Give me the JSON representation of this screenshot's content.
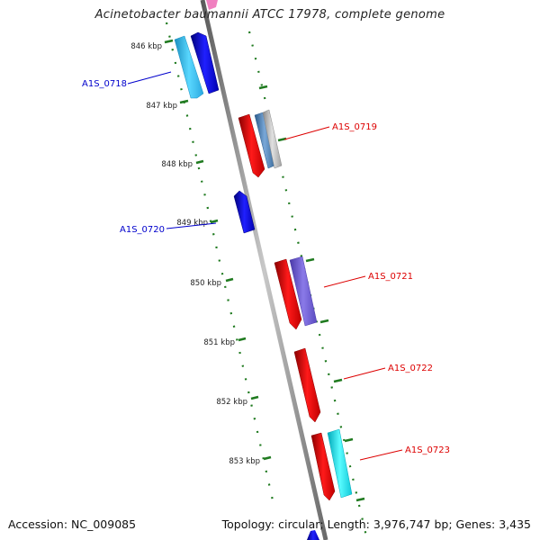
{
  "title": "Acinetobacter baumannii ATCC 17978, complete genome",
  "ticks": [
    "846 kbp",
    "847 kbp",
    "848 kbp",
    "849 kbp",
    "850 kbp",
    "851 kbp",
    "852 kbp",
    "853 kbp"
  ],
  "genes": {
    "left": [
      {
        "label": "A1S_0718",
        "color": "#0000cc"
      },
      {
        "label": "A1S_0720",
        "color": "#0000cc"
      }
    ],
    "right": [
      {
        "label": "A1S_0719",
        "color": "#dd0000"
      },
      {
        "label": "A1S_0721",
        "color": "#dd0000"
      },
      {
        "label": "A1S_0722",
        "color": "#dd0000"
      },
      {
        "label": "A1S_0723",
        "color": "#dd0000"
      }
    ]
  },
  "colors": {
    "backbone": "#8a8a8a",
    "tick_marks": "#1f7a1f",
    "forward_gene": "#ee0000",
    "reverse_gene": "#1010d0",
    "cyan_gene": "#35c6f2",
    "steel_gene": "#4a7fb0",
    "purple_gene": "#6a5ad0",
    "gray_gene": "#b0b0b0",
    "aqua_gene": "#1de0ee",
    "pink_gene": "#f080c0"
  },
  "footer": {
    "accession": "Accession: NC_009085",
    "summary": "Topology: circular; Length: 3,976,747 bp; Genes: 3,435"
  }
}
